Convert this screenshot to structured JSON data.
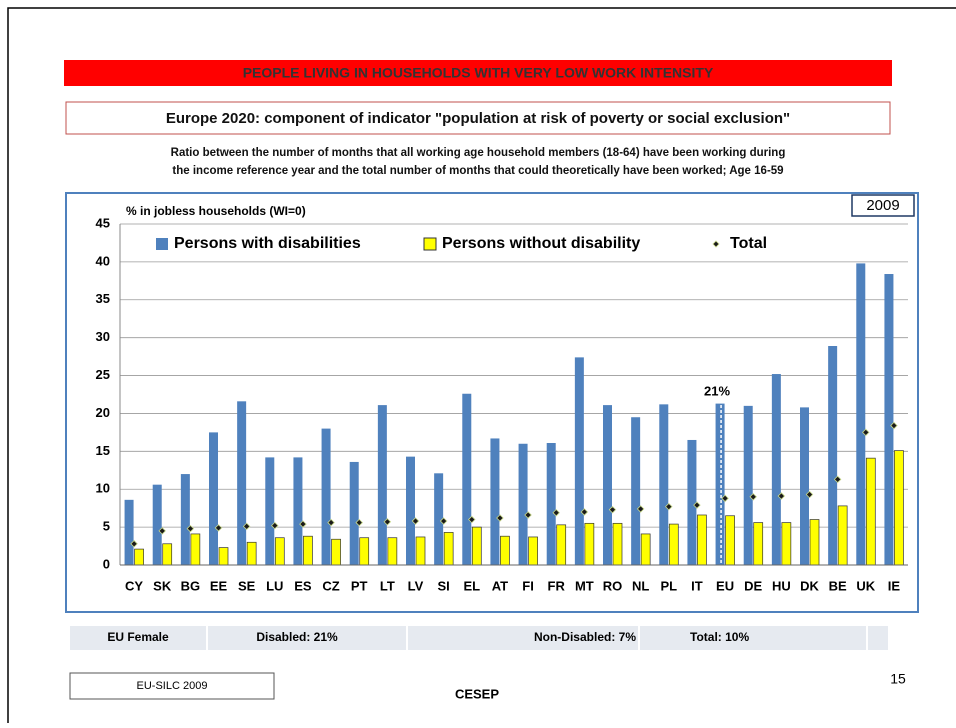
{
  "slide": {
    "banner": "PEOPLE LIVING IN HOUSEHOLDS WITH VERY LOW WORK INTENSITY",
    "heading": "Europe 2020: component of indicator \"population at risk of poverty or social exclusion\"",
    "description": [
      "Ratio between the number of months that all working age household members (18-64) have been working during",
      "the income reference year and the total number of months that could theoretically have been worked; Age 16-59"
    ],
    "summary": [
      "EU Female",
      "Disabled: 21%",
      "Non-Disabled: 7%",
      "Total: 10%"
    ],
    "source": "EU-SILC 2009",
    "organisation": "CESEP",
    "page_number": "15"
  },
  "chart_data": {
    "type": "bar",
    "year": "2009",
    "y_label": "% in jobless households (WI=0)",
    "categories": [
      "CY",
      "SK",
      "BG",
      "EE",
      "SE",
      "LU",
      "ES",
      "CZ",
      "PT",
      "LT",
      "LV",
      "SI",
      "EL",
      "AT",
      "FI",
      "FR",
      "MT",
      "RO",
      "NL",
      "PL",
      "IT",
      "EU",
      "DE",
      "HU",
      "DK",
      "BE",
      "UK",
      "IE"
    ],
    "series": [
      {
        "name": "Persons with disabilities",
        "color": "#4f81bd",
        "values": [
          8.6,
          10.6,
          12,
          17.5,
          21.6,
          14.2,
          14.2,
          18,
          13.6,
          21.1,
          14.3,
          12.1,
          22.6,
          16.7,
          16,
          16.1,
          27.4,
          21.1,
          19.5,
          21.2,
          16.5,
          21.3,
          21,
          25.2,
          20.8,
          28.9,
          39.8,
          38.4
        ]
      },
      {
        "name": "Persons without disability",
        "color": "#ffff00",
        "values": [
          2.1,
          2.8,
          4.1,
          2.3,
          3,
          3.6,
          3.8,
          3.4,
          3.6,
          3.6,
          3.7,
          4.3,
          5,
          3.8,
          3.7,
          5.3,
          5.5,
          5.5,
          4.1,
          5.4,
          6.6,
          6.5,
          5.6,
          5.6,
          6,
          7.8,
          14.1,
          15.1
        ]
      },
      {
        "name": "Total",
        "color": "#1a1a1a",
        "marker": "diamond",
        "values": [
          2.8,
          4.5,
          4.8,
          4.9,
          5.1,
          5.2,
          5.4,
          5.6,
          5.6,
          5.7,
          5.8,
          5.8,
          6,
          6.2,
          6.6,
          6.9,
          7,
          7.3,
          7.4,
          7.7,
          7.9,
          8.8,
          9,
          9.1,
          9.3,
          11.3,
          17.5,
          18.4
        ]
      }
    ],
    "annotation": "21%",
    "ylim": [
      0,
      45
    ],
    "yticks": [
      0,
      5,
      10,
      15,
      20,
      25,
      30,
      35,
      40,
      45
    ],
    "grid": true
  }
}
